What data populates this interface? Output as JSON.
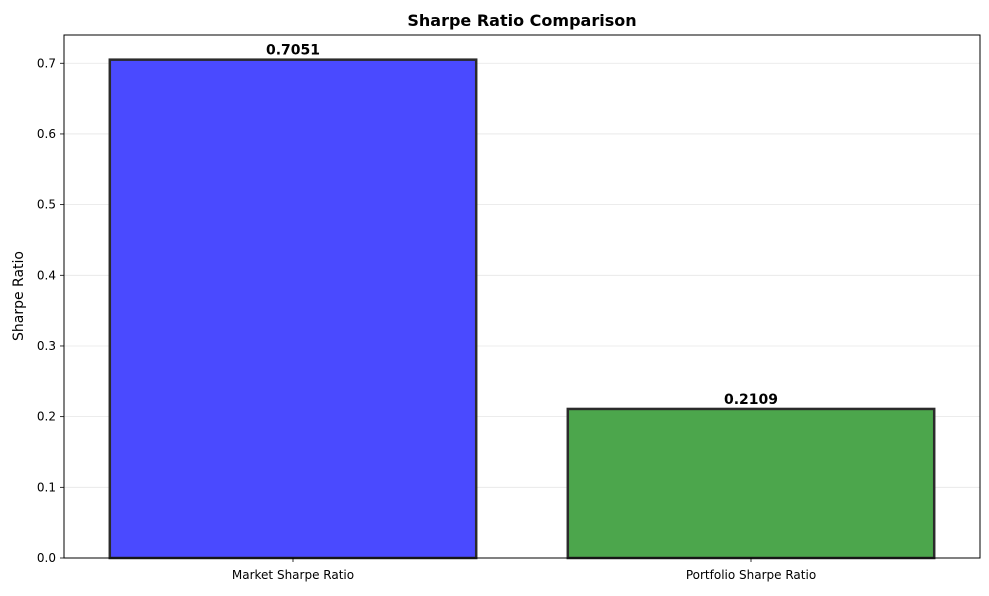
{
  "chart_data": {
    "type": "bar",
    "title": "Sharpe Ratio Comparison",
    "xlabel": "",
    "ylabel": "Sharpe Ratio",
    "categories": [
      "Market Sharpe Ratio",
      "Portfolio Sharpe Ratio"
    ],
    "values": [
      0.7051,
      0.2109
    ],
    "value_labels": [
      "0.7051",
      "0.2109"
    ],
    "colors": [
      "#4a4aff",
      "#4ca64c"
    ],
    "edge_color": "#2b2b2b",
    "ylim": [
      0,
      0.74
    ],
    "yticks": [
      0.0,
      0.1,
      0.2,
      0.3,
      0.4,
      0.5,
      0.6,
      0.7
    ],
    "ytick_labels": [
      "0.0",
      "0.1",
      "0.2",
      "0.3",
      "0.4",
      "0.5",
      "0.6",
      "0.7"
    ],
    "grid": "y-axis only",
    "legend": "none"
  }
}
